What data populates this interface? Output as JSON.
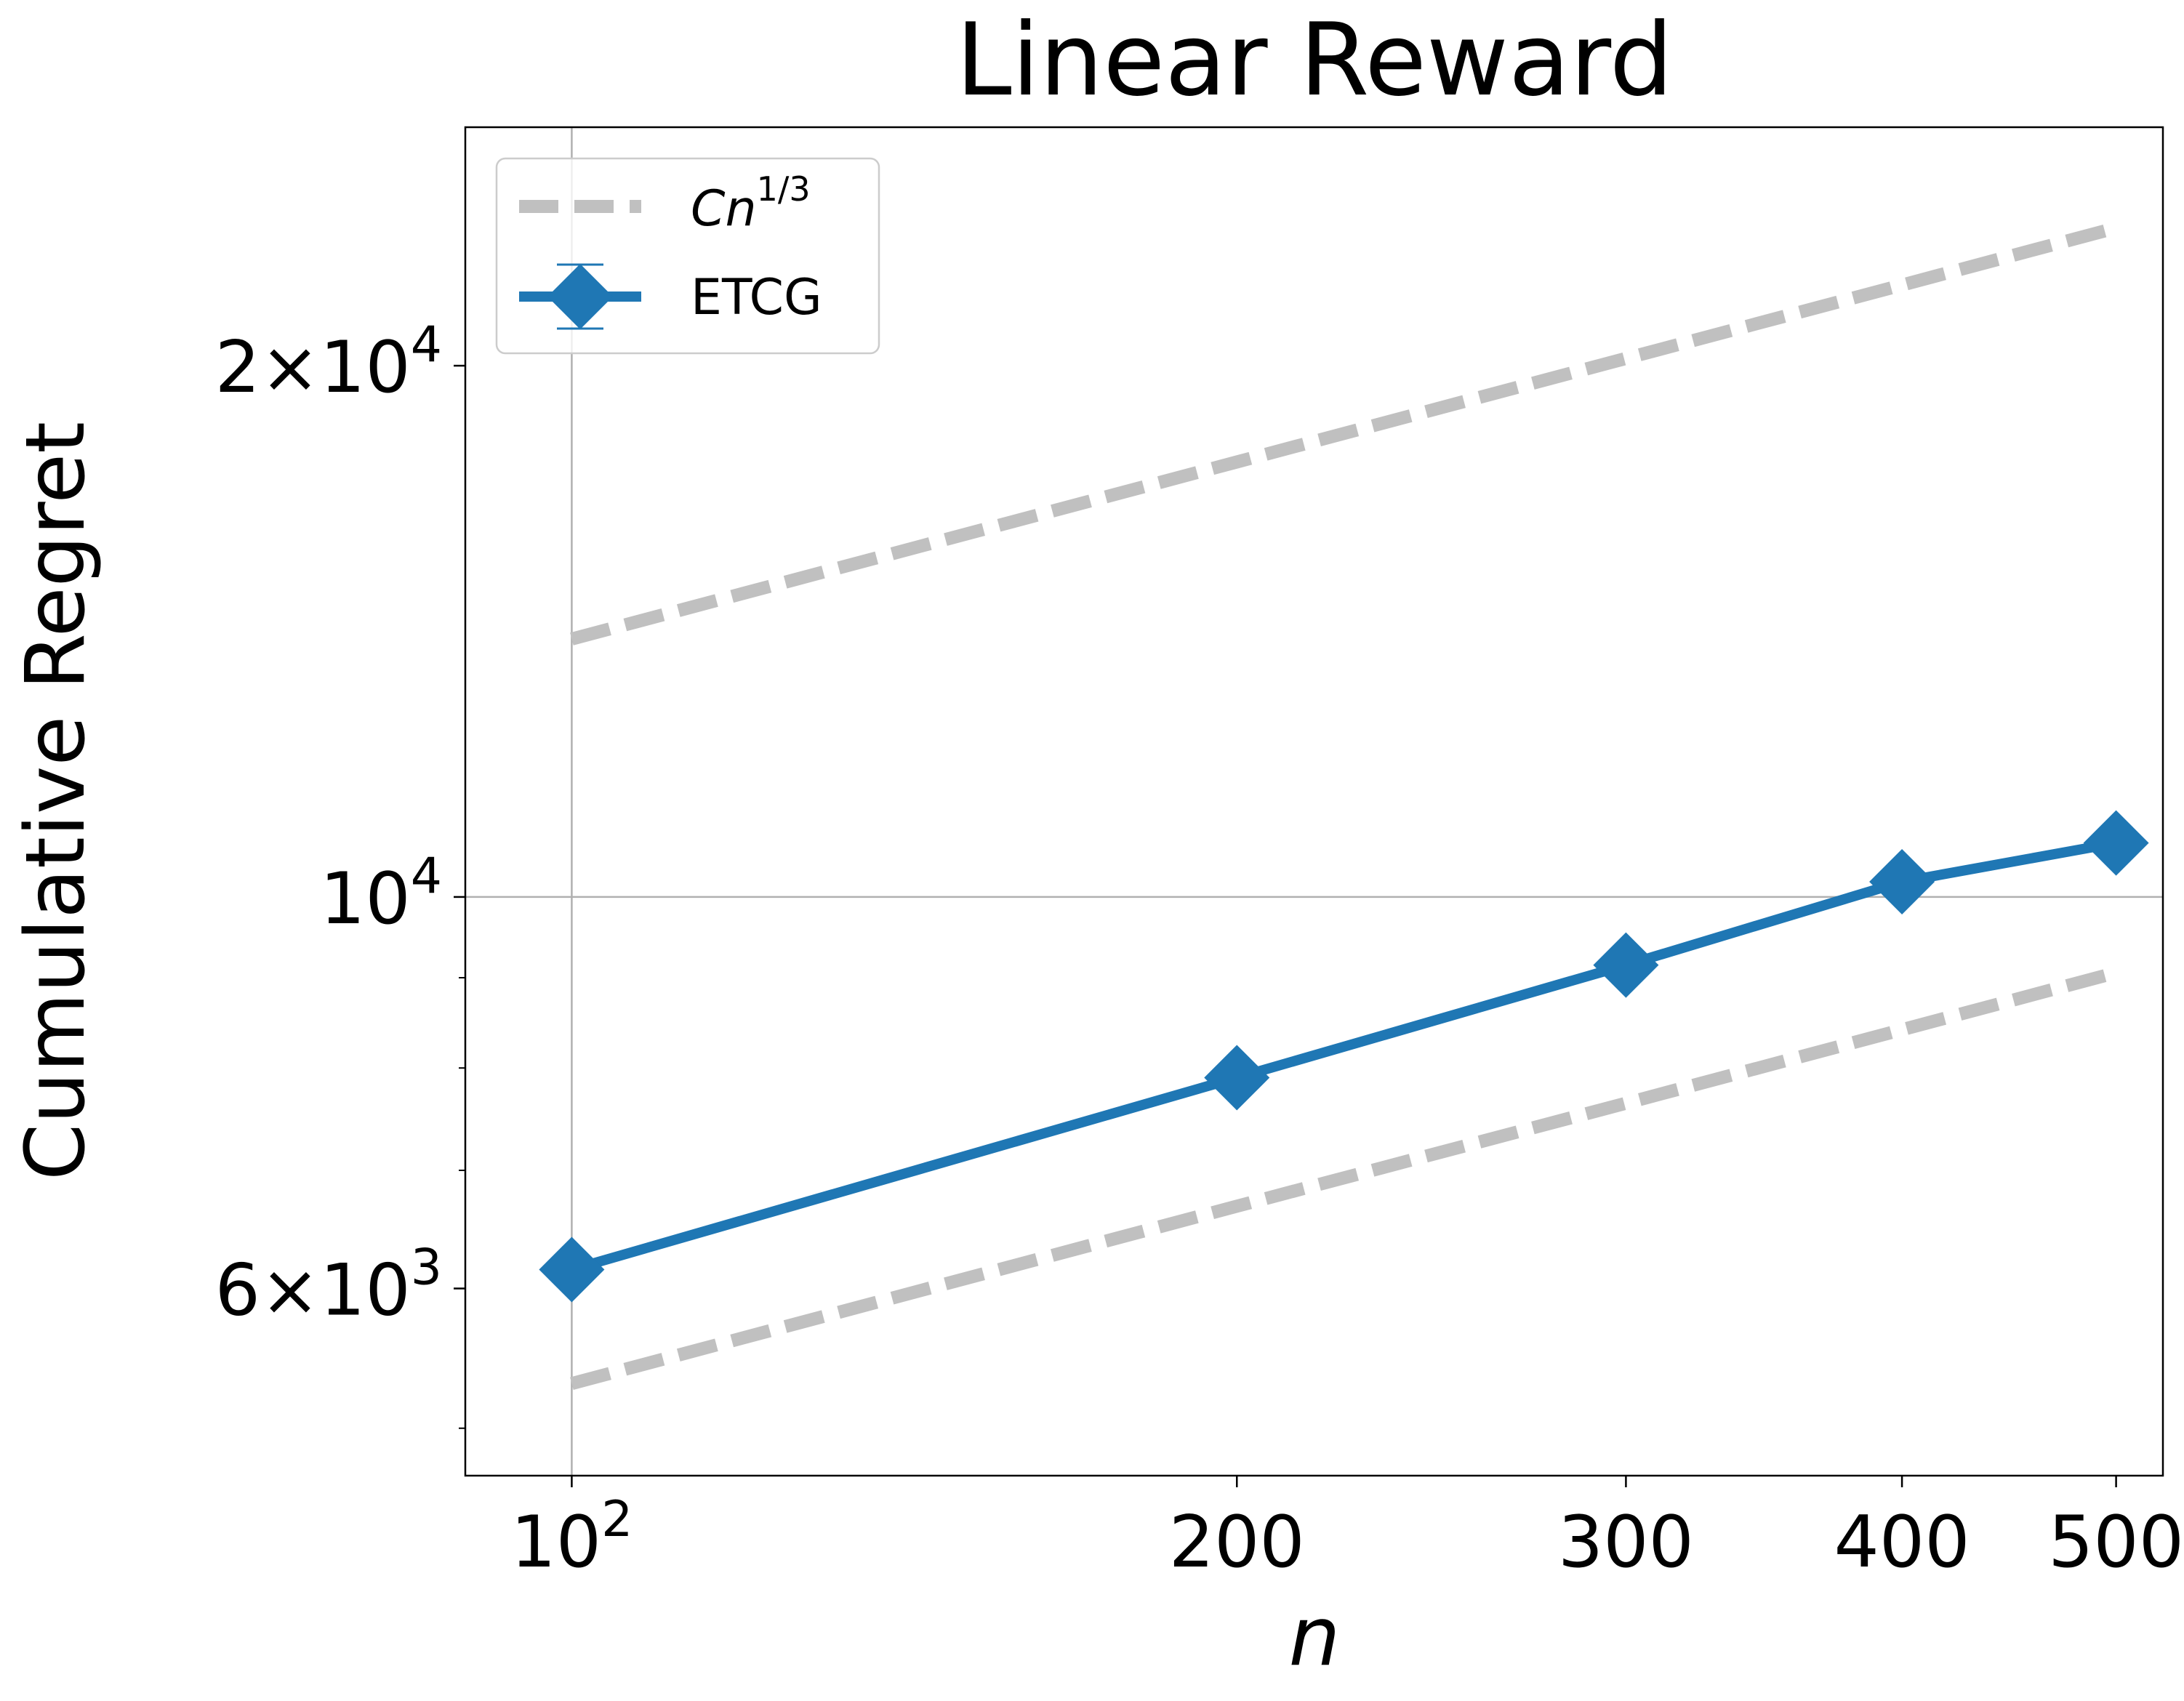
{
  "chart_data": {
    "type": "line",
    "title": "Linear Reward",
    "xlabel": "n",
    "ylabel": "Cumulative Regret",
    "xscale": "log",
    "yscale": "log",
    "xlim": [
      89.5,
      525
    ],
    "ylim": [
      4700,
      27300
    ],
    "grid": "major",
    "legend_location": "upper left",
    "x_ticks": [
      {
        "value": 100,
        "base": "10",
        "exp": "2"
      },
      {
        "value": 200,
        "label": "200"
      },
      {
        "value": 300,
        "label": "300"
      },
      {
        "value": 400,
        "label": "400"
      },
      {
        "value": 500,
        "label": "500"
      }
    ],
    "y_ticks": [
      {
        "value": 6000,
        "mant": "6",
        "times": "×",
        "base": "10",
        "exp": "3"
      },
      {
        "value": 10000,
        "base": "10",
        "exp": "4"
      },
      {
        "value": 20000,
        "mant": "2",
        "times": "×",
        "base": "10",
        "exp": "4"
      }
    ],
    "y_minor_ticks": [
      5000,
      7000,
      8000,
      9000
    ],
    "x": [
      100,
      200,
      300,
      400,
      500
    ],
    "series": [
      {
        "name_base": "Cn",
        "name_sup": "1/3",
        "style": "dashed",
        "color": "#c0c0c0",
        "values": [
          14000,
          17640,
          20190,
          22220,
          23940
        ]
      },
      {
        "name_base": "Cn",
        "name_sup": "1/3",
        "style": "dashed",
        "color": "#c0c0c0",
        "values": [
          5300,
          6680,
          7640,
          8410,
          9060
        ]
      },
      {
        "name": "ETCG",
        "style": "solid-diamond",
        "color": "#1f77b4",
        "values": [
          6150,
          7900,
          9150,
          10200,
          10730
        ]
      }
    ]
  }
}
